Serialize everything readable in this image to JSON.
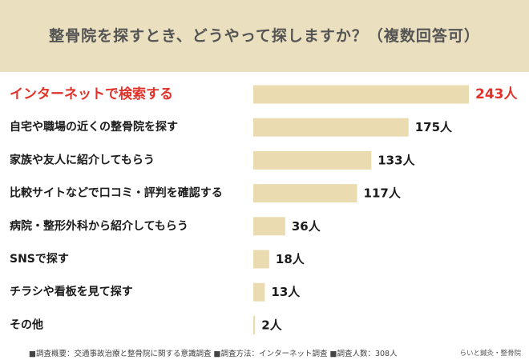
{
  "title": "整骨院を探すとき、どうやって探しますか？（複数回答可）",
  "footer_note": "■調査概要：交通事故治療と整骨院に関する意識調査 ■調査方法：インターネット調査 ■調査人数：308人",
  "brand": "らいと鍼灸・整骨院",
  "colors": {
    "header_bg": "#eadfbf",
    "bar": "#eadcb0",
    "highlight": "#e0322a",
    "text": "#1a1a1a"
  },
  "chart_data": {
    "type": "bar",
    "orientation": "horizontal",
    "unit": "人",
    "categories": [
      "インターネットで検索する",
      "自宅や職場の近くの整骨院を探す",
      "家族や友人に紹介してもらう",
      "比較サイトなどで口コミ・評判を確認する",
      "病院・整形外科から紹介してもらう",
      "SNSで探す",
      "チラシや看板を見て探す",
      "その他"
    ],
    "values": [
      243,
      175,
      133,
      117,
      36,
      18,
      13,
      2
    ],
    "value_labels": [
      "243人",
      "175人",
      "133人",
      "117人",
      "36人",
      "18人",
      "13人",
      "2人"
    ],
    "highlight_index": 0,
    "xlim": [
      0,
      243
    ],
    "grid": false,
    "legend": "none"
  }
}
